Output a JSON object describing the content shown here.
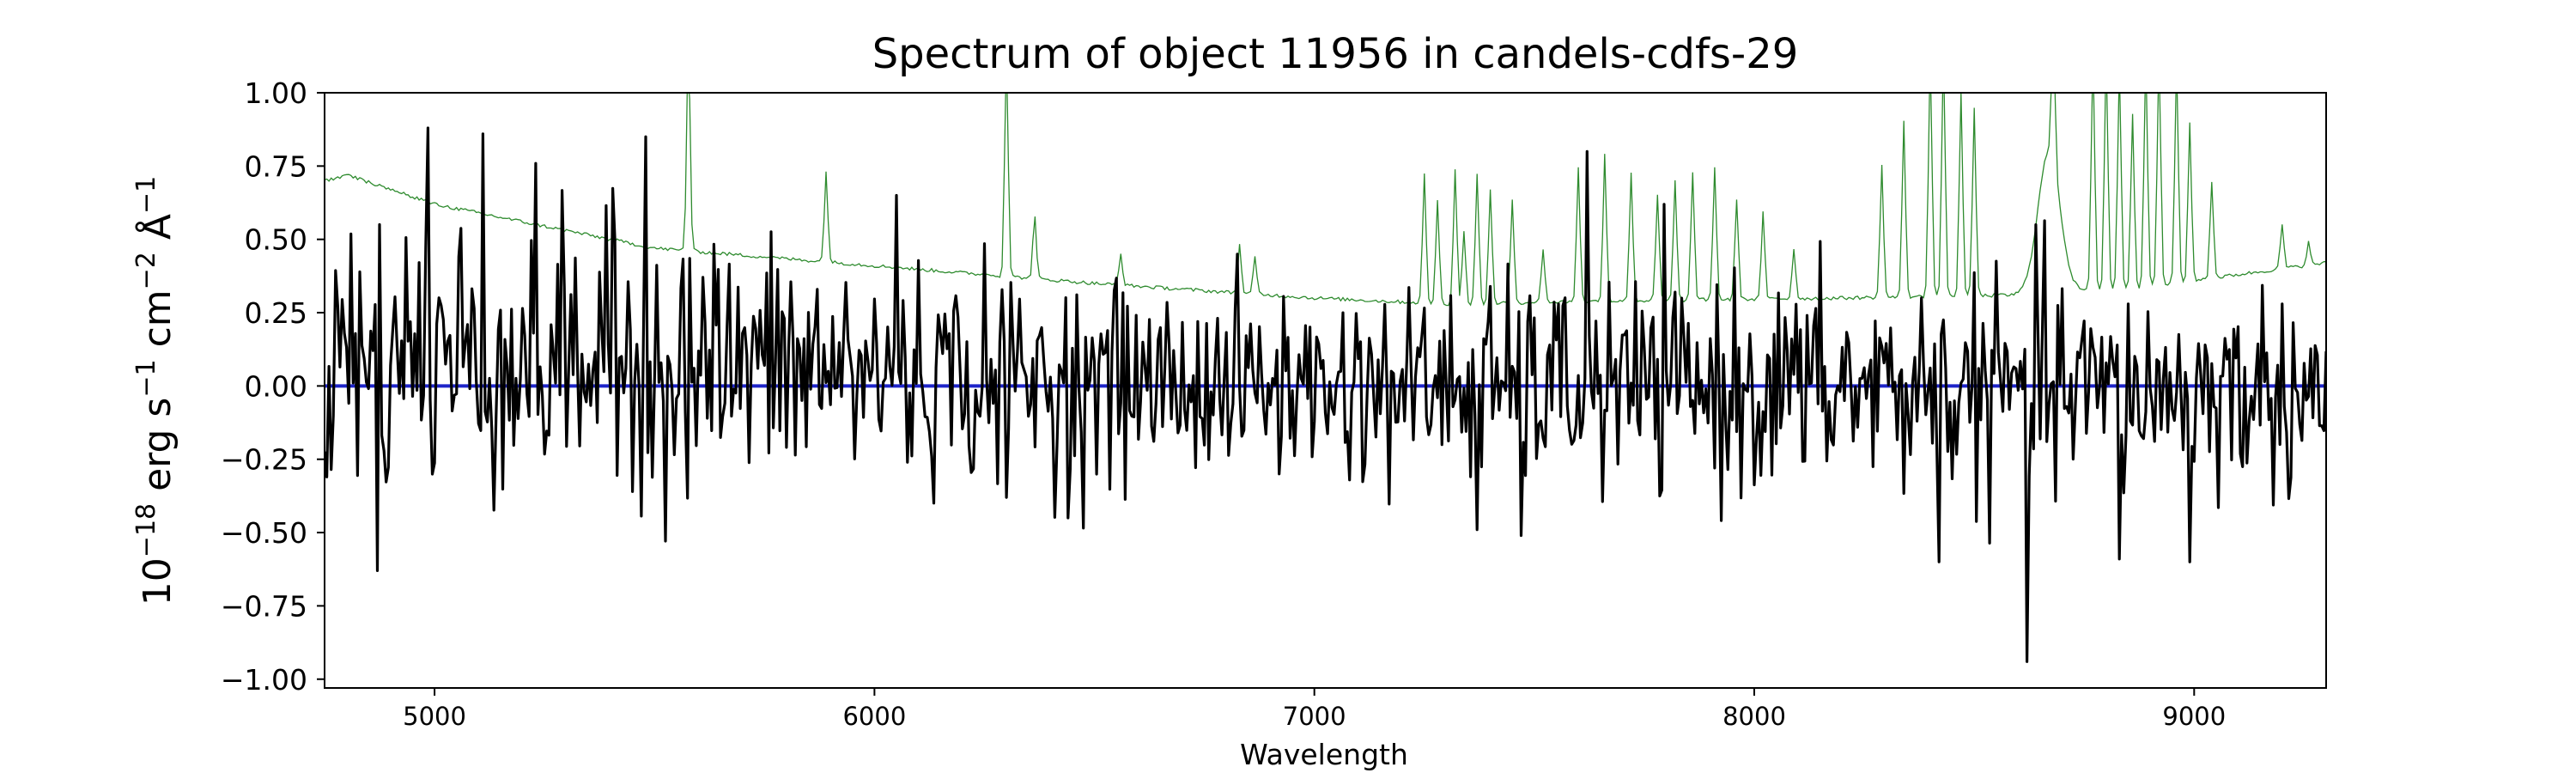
{
  "chart_data": {
    "type": "line",
    "title": "Spectrum of object 11956 in candels-cdfs-29",
    "xlabel": "Wavelength",
    "ylabel": {
      "base": "10",
      "exp": "−18",
      "unit1": " erg s",
      "exp1": "−1",
      "unit2": " cm",
      "exp2": "−2",
      "unit3": " Å",
      "exp3": "−1"
    },
    "xlim": [
      4750,
      9300
    ],
    "ylim": [
      -1.03,
      1.0
    ],
    "x_ticks": [
      5000,
      6000,
      7000,
      8000,
      9000
    ],
    "y_ticks": [
      -1.0,
      -0.75,
      -0.5,
      -0.25,
      0.0,
      0.25,
      0.5,
      0.75,
      1.0
    ],
    "x_tick_labels": [
      "5000",
      "6000",
      "7000",
      "8000",
      "9000"
    ],
    "y_tick_labels": [
      "−1.00",
      "−0.75",
      "−0.50",
      "−0.25",
      "0.00",
      "0.25",
      "0.50",
      "0.75",
      "1.00"
    ],
    "grid": false,
    "series": [
      {
        "role": "flux",
        "color": "#000000",
        "sample_step": 5,
        "noise_sigma_control": [
          [
            4750,
            0.26
          ],
          [
            5500,
            0.23
          ],
          [
            6300,
            0.17
          ],
          [
            7000,
            0.16
          ],
          [
            8000,
            0.18
          ],
          [
            9300,
            0.17
          ]
        ],
        "mean_control": [
          [
            4750,
            0.12
          ],
          [
            5500,
            0.09
          ],
          [
            6200,
            0.03
          ],
          [
            7000,
            0.0
          ],
          [
            9300,
            -0.02
          ]
        ],
        "features": [
          [
            4870,
            -0.63
          ],
          [
            5110,
            -0.47
          ],
          [
            5450,
            -0.36
          ],
          [
            6300,
            -0.38
          ],
          [
            6440,
            -0.45
          ],
          [
            7370,
            -0.49
          ],
          [
            7470,
            -0.51
          ],
          [
            8420,
            -0.6
          ],
          [
            8620,
            -0.94
          ],
          [
            8830,
            -0.59
          ],
          [
            8990,
            -0.6
          ],
          [
            4985,
            0.88
          ],
          [
            5110,
            0.86
          ],
          [
            5480,
            0.85
          ],
          [
            6050,
            0.65
          ],
          [
            7620,
            0.8
          ],
          [
            8640,
            0.55
          ]
        ]
      },
      {
        "role": "zero",
        "color": "#1f25c9",
        "x": [
          4750,
          9300
        ],
        "y": [
          0.0,
          0.0
        ]
      },
      {
        "role": "error",
        "color": "#2e8b2e",
        "sample_step": 5,
        "baseline_control": [
          [
            4750,
            0.7
          ],
          [
            4800,
            0.72
          ],
          [
            5000,
            0.62
          ],
          [
            5500,
            0.47
          ],
          [
            6000,
            0.41
          ],
          [
            6500,
            0.35
          ],
          [
            7000,
            0.3
          ],
          [
            7300,
            0.28
          ],
          [
            7700,
            0.29
          ],
          [
            8200,
            0.3
          ],
          [
            8600,
            0.31
          ],
          [
            8900,
            0.34
          ],
          [
            9300,
            0.42
          ]
        ],
        "emission_lines": [
          [
            5577,
            1.15
          ],
          [
            5890,
            0.73
          ],
          [
            6300,
            1.15
          ],
          [
            6364,
            0.58
          ],
          [
            6560,
            0.45
          ],
          [
            6830,
            0.48
          ],
          [
            6865,
            0.44
          ],
          [
            7250,
            0.72
          ],
          [
            7280,
            0.63
          ],
          [
            7320,
            0.74
          ],
          [
            7340,
            0.53
          ],
          [
            7370,
            0.72
          ],
          [
            7400,
            0.67
          ],
          [
            7450,
            0.63
          ],
          [
            7520,
            0.47
          ],
          [
            7600,
            0.75
          ],
          [
            7660,
            0.79
          ],
          [
            7720,
            0.73
          ],
          [
            7780,
            0.65
          ],
          [
            7820,
            0.7
          ],
          [
            7860,
            0.73
          ],
          [
            7910,
            0.75
          ],
          [
            7960,
            0.64
          ],
          [
            8020,
            0.59
          ],
          [
            8090,
            0.47
          ],
          [
            8290,
            0.75
          ],
          [
            8340,
            0.9
          ],
          [
            8400,
            1.15
          ],
          [
            8430,
            1.15
          ],
          [
            8470,
            1.0
          ],
          [
            8500,
            0.95
          ],
          [
            8680,
            0.78
          ],
          [
            8770,
            1.15
          ],
          [
            8800,
            1.15
          ],
          [
            8830,
            1.1
          ],
          [
            8860,
            0.93
          ],
          [
            8890,
            1.15
          ],
          [
            8920,
            1.15
          ],
          [
            8960,
            1.12
          ],
          [
            8990,
            0.9
          ],
          [
            9040,
            0.7
          ],
          [
            9200,
            0.55
          ],
          [
            9260,
            0.49
          ]
        ],
        "broad_bump": [
          [
            8620,
            8720
          ],
          0.8
        ]
      }
    ]
  }
}
